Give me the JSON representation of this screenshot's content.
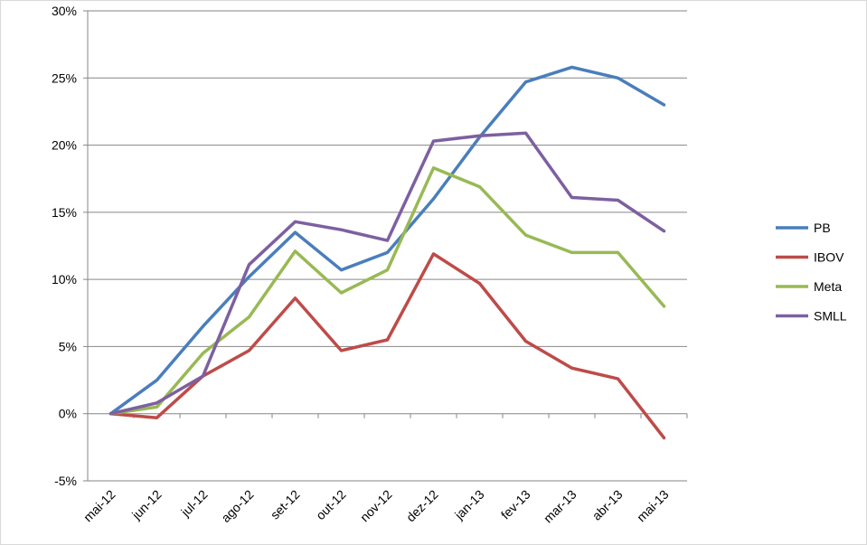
{
  "chart_data": {
    "type": "line",
    "categories": [
      "mai-12",
      "jun-12",
      "jul-12",
      "ago-12",
      "set-12",
      "out-12",
      "nov-12",
      "dez-12",
      "jan-13",
      "fev-13",
      "mar-13",
      "abr-13",
      "mai-13"
    ],
    "y_tick_labels": [
      "30%",
      "25%",
      "20%",
      "15%",
      "10%",
      "5%",
      "0%",
      "-5%"
    ],
    "y_ticks": [
      30,
      25,
      20,
      15,
      10,
      5,
      0,
      -5
    ],
    "ylim": [
      -5,
      30
    ],
    "grid": true,
    "legend_position": "right",
    "series": [
      {
        "name": "PB",
        "color": "#4a7ebb",
        "values": [
          0,
          2.5,
          6.5,
          10.2,
          13.5,
          10.7,
          12.0,
          16.0,
          20.6,
          24.7,
          25.8,
          25.0,
          23.0
        ]
      },
      {
        "name": "IBOV",
        "color": "#be4b48",
        "values": [
          0,
          -0.3,
          2.8,
          4.7,
          8.6,
          4.7,
          5.5,
          11.9,
          9.7,
          5.4,
          3.4,
          2.6,
          -1.8
        ]
      },
      {
        "name": "Meta",
        "color": "#98b954",
        "values": [
          0,
          0.5,
          4.5,
          7.2,
          12.1,
          9.0,
          10.7,
          18.3,
          16.9,
          13.3,
          12.0,
          12.0,
          8.0
        ]
      },
      {
        "name": "SMLL",
        "color": "#7d60a0",
        "values": [
          0,
          0.8,
          2.8,
          11.1,
          14.3,
          13.7,
          12.9,
          20.3,
          20.7,
          20.9,
          16.1,
          15.9,
          13.6
        ]
      }
    ]
  }
}
